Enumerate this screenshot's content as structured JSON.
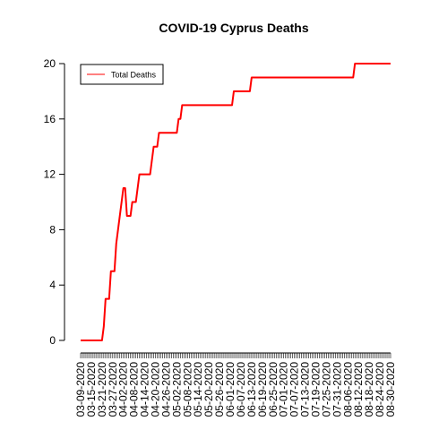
{
  "chart_data": {
    "type": "line",
    "title": "COVID-19 Cyprus Deaths",
    "xlabel": "",
    "ylabel": "",
    "ylim": [
      0,
      20
    ],
    "yticks": [
      0,
      4,
      8,
      12,
      16,
      20
    ],
    "xlim": [
      "2020-03-09",
      "2020-08-30"
    ],
    "xtick_labels": [
      "03-09-2020",
      "03-15-2020",
      "03-21-2020",
      "03-27-2020",
      "04-02-2020",
      "04-08-2020",
      "04-14-2020",
      "04-20-2020",
      "04-26-2020",
      "05-02-2020",
      "05-08-2020",
      "05-14-2020",
      "05-20-2020",
      "05-26-2020",
      "06-01-2020",
      "06-07-2020",
      "06-13-2020",
      "06-19-2020",
      "06-25-2020",
      "07-01-2020",
      "07-07-2020",
      "07-13-2020",
      "07-19-2020",
      "07-25-2020",
      "07-31-2020",
      "08-06-2020",
      "08-12-2020",
      "08-18-2020",
      "08-24-2020",
      "08-30-2020"
    ],
    "grid": false,
    "legend_position": "top-left",
    "series": [
      {
        "name": "Total Deaths",
        "color": "#ff0000",
        "points": [
          [
            "2020-03-09",
            0
          ],
          [
            "2020-03-21",
            0
          ],
          [
            "2020-03-22",
            1
          ],
          [
            "2020-03-23",
            3
          ],
          [
            "2020-03-25",
            3
          ],
          [
            "2020-03-26",
            5
          ],
          [
            "2020-03-28",
            5
          ],
          [
            "2020-03-29",
            7
          ],
          [
            "2020-04-02",
            11
          ],
          [
            "2020-04-03",
            11
          ],
          [
            "2020-04-04",
            9
          ],
          [
            "2020-04-06",
            9
          ],
          [
            "2020-04-07",
            10
          ],
          [
            "2020-04-09",
            10
          ],
          [
            "2020-04-11",
            12
          ],
          [
            "2020-04-17",
            12
          ],
          [
            "2020-04-18",
            13
          ],
          [
            "2020-04-19",
            14
          ],
          [
            "2020-04-21",
            14
          ],
          [
            "2020-04-22",
            15
          ],
          [
            "2020-05-02",
            15
          ],
          [
            "2020-05-03",
            16
          ],
          [
            "2020-05-04",
            16
          ],
          [
            "2020-05-05",
            17
          ],
          [
            "2020-06-02",
            17
          ],
          [
            "2020-06-03",
            18
          ],
          [
            "2020-06-12",
            18
          ],
          [
            "2020-06-13",
            19
          ],
          [
            "2020-08-09",
            19
          ],
          [
            "2020-08-10",
            20
          ],
          [
            "2020-08-30",
            20
          ]
        ]
      }
    ]
  }
}
